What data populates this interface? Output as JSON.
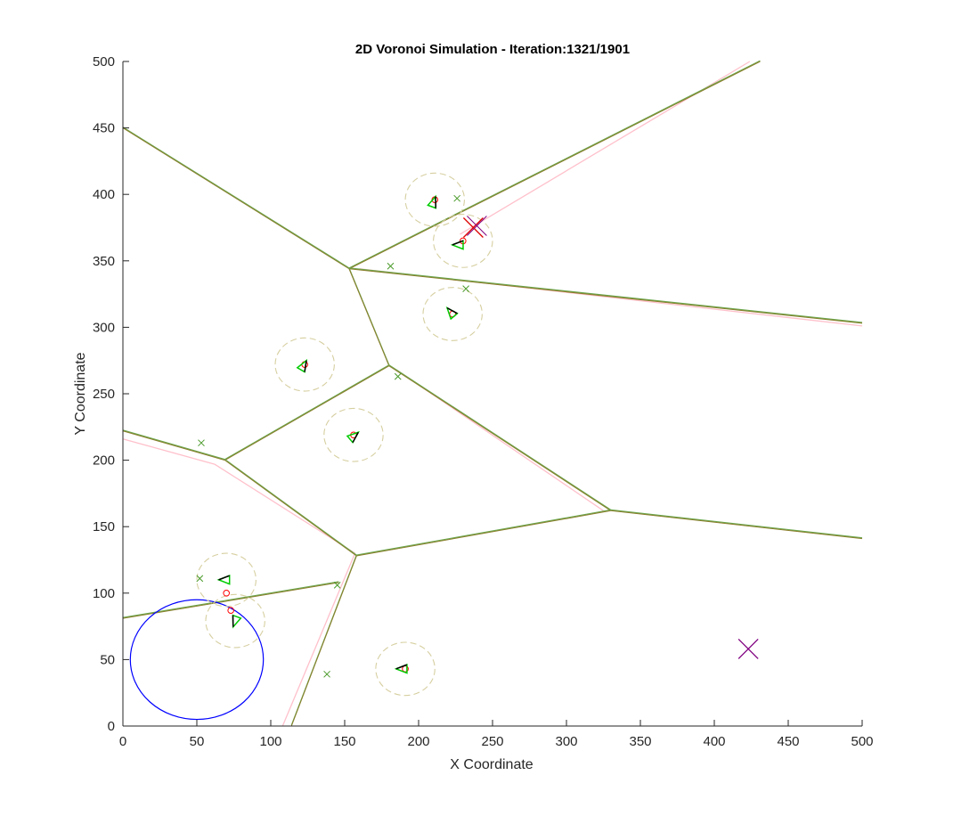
{
  "chart_data": {
    "type": "scatter",
    "title": "2D Voronoi Simulation - Iteration:1321/1901",
    "xlabel": "X Coordinate",
    "ylabel": "Y Coordinate",
    "xlim": [
      0,
      500
    ],
    "ylim": [
      0,
      500
    ],
    "xticks": [
      "0",
      "50",
      "100",
      "150",
      "200",
      "250",
      "300",
      "350",
      "400",
      "450",
      "500"
    ],
    "yticks": [
      "0",
      "50",
      "100",
      "150",
      "200",
      "250",
      "300",
      "350",
      "400",
      "450",
      "500"
    ],
    "grid": false,
    "colors": {
      "voronoi_current": "#6aa84f",
      "voronoi_overlay": "#8b7d2b",
      "voronoi_previous": "#ffc0cb",
      "agent_marker": "#00cc00",
      "agent_heading": "#000000",
      "centroid": "#ff0000",
      "sensing_circle": "#d6cfa0",
      "target_marker": "#4a9a2a",
      "obstacle_circle": "#0000ff",
      "event_primary": "#dd0000",
      "event_secondary": "#800080"
    },
    "voronoi_edges": [
      [
        [
          0,
          450
        ],
        [
          153,
          344
        ]
      ],
      [
        [
          153,
          344
        ],
        [
          431,
          500
        ]
      ],
      [
        [
          153,
          344
        ],
        [
          500,
          303
        ]
      ],
      [
        [
          153,
          344
        ],
        [
          180,
          271
        ]
      ],
      [
        [
          180,
          271
        ],
        [
          69,
          200
        ]
      ],
      [
        [
          180,
          271
        ],
        [
          330,
          162
        ]
      ],
      [
        [
          69,
          200
        ],
        [
          0,
          222
        ]
      ],
      [
        [
          69,
          200
        ],
        [
          158,
          128
        ]
      ],
      [
        [
          158,
          128
        ],
        [
          330,
          162
        ]
      ],
      [
        [
          330,
          162
        ],
        [
          500,
          141
        ]
      ],
      [
        [
          158,
          128
        ],
        [
          114,
          0
        ]
      ],
      [
        [
          146,
          108
        ],
        [
          0,
          81
        ]
      ]
    ],
    "voronoi_edges_previous": [
      [
        [
          0,
          216
        ],
        [
          62,
          197
        ]
      ],
      [
        [
          62,
          197
        ],
        [
          157,
          130
        ]
      ],
      [
        [
          157,
          130
        ],
        [
          108,
          0
        ]
      ],
      [
        [
          500,
          301
        ],
        [
          160,
          344
        ]
      ],
      [
        [
          228,
          370
        ],
        [
          424,
          500
        ]
      ],
      [
        [
          185,
          268
        ],
        [
          325,
          162
        ]
      ]
    ],
    "agents": [
      {
        "x": 210,
        "y": 394,
        "heading": 70
      },
      {
        "x": 227,
        "y": 362,
        "heading": 180
      },
      {
        "x": 222,
        "y": 311,
        "heading": 130
      },
      {
        "x": 122,
        "y": 271,
        "heading": 60
      },
      {
        "x": 156,
        "y": 218,
        "heading": 40
      },
      {
        "x": 69,
        "y": 110,
        "heading": 180
      },
      {
        "x": 76,
        "y": 79,
        "heading": 250
      },
      {
        "x": 189,
        "y": 43,
        "heading": 180
      }
    ],
    "centroids": [
      {
        "x": 211,
        "y": 396
      },
      {
        "x": 230,
        "y": 365
      },
      {
        "x": 223,
        "y": 310
      },
      {
        "x": 123,
        "y": 272
      },
      {
        "x": 156,
        "y": 219
      },
      {
        "x": 70,
        "y": 100
      },
      {
        "x": 73,
        "y": 87
      },
      {
        "x": 191,
        "y": 43
      }
    ],
    "sensing_circles": [
      {
        "x": 211,
        "y": 396,
        "r": 20
      },
      {
        "x": 230,
        "y": 365,
        "r": 20
      },
      {
        "x": 223,
        "y": 310,
        "r": 20
      },
      {
        "x": 123,
        "y": 272,
        "r": 20
      },
      {
        "x": 156,
        "y": 219,
        "r": 20
      },
      {
        "x": 70,
        "y": 110,
        "r": 20
      },
      {
        "x": 76,
        "y": 79,
        "r": 20
      },
      {
        "x": 191,
        "y": 43,
        "r": 20
      }
    ],
    "targets": [
      {
        "x": 226,
        "y": 397
      },
      {
        "x": 181,
        "y": 346
      },
      {
        "x": 232,
        "y": 329
      },
      {
        "x": 186,
        "y": 263
      },
      {
        "x": 53,
        "y": 213
      },
      {
        "x": 52,
        "y": 111
      },
      {
        "x": 145,
        "y": 106
      },
      {
        "x": 138,
        "y": 39
      }
    ],
    "events": [
      {
        "x": 237,
        "y": 375,
        "color_key": "event_primary"
      },
      {
        "x": 423,
        "y": 58,
        "color_key": "event_secondary"
      }
    ],
    "obstacle": {
      "x": 50,
      "y": 50,
      "r": 45
    }
  }
}
